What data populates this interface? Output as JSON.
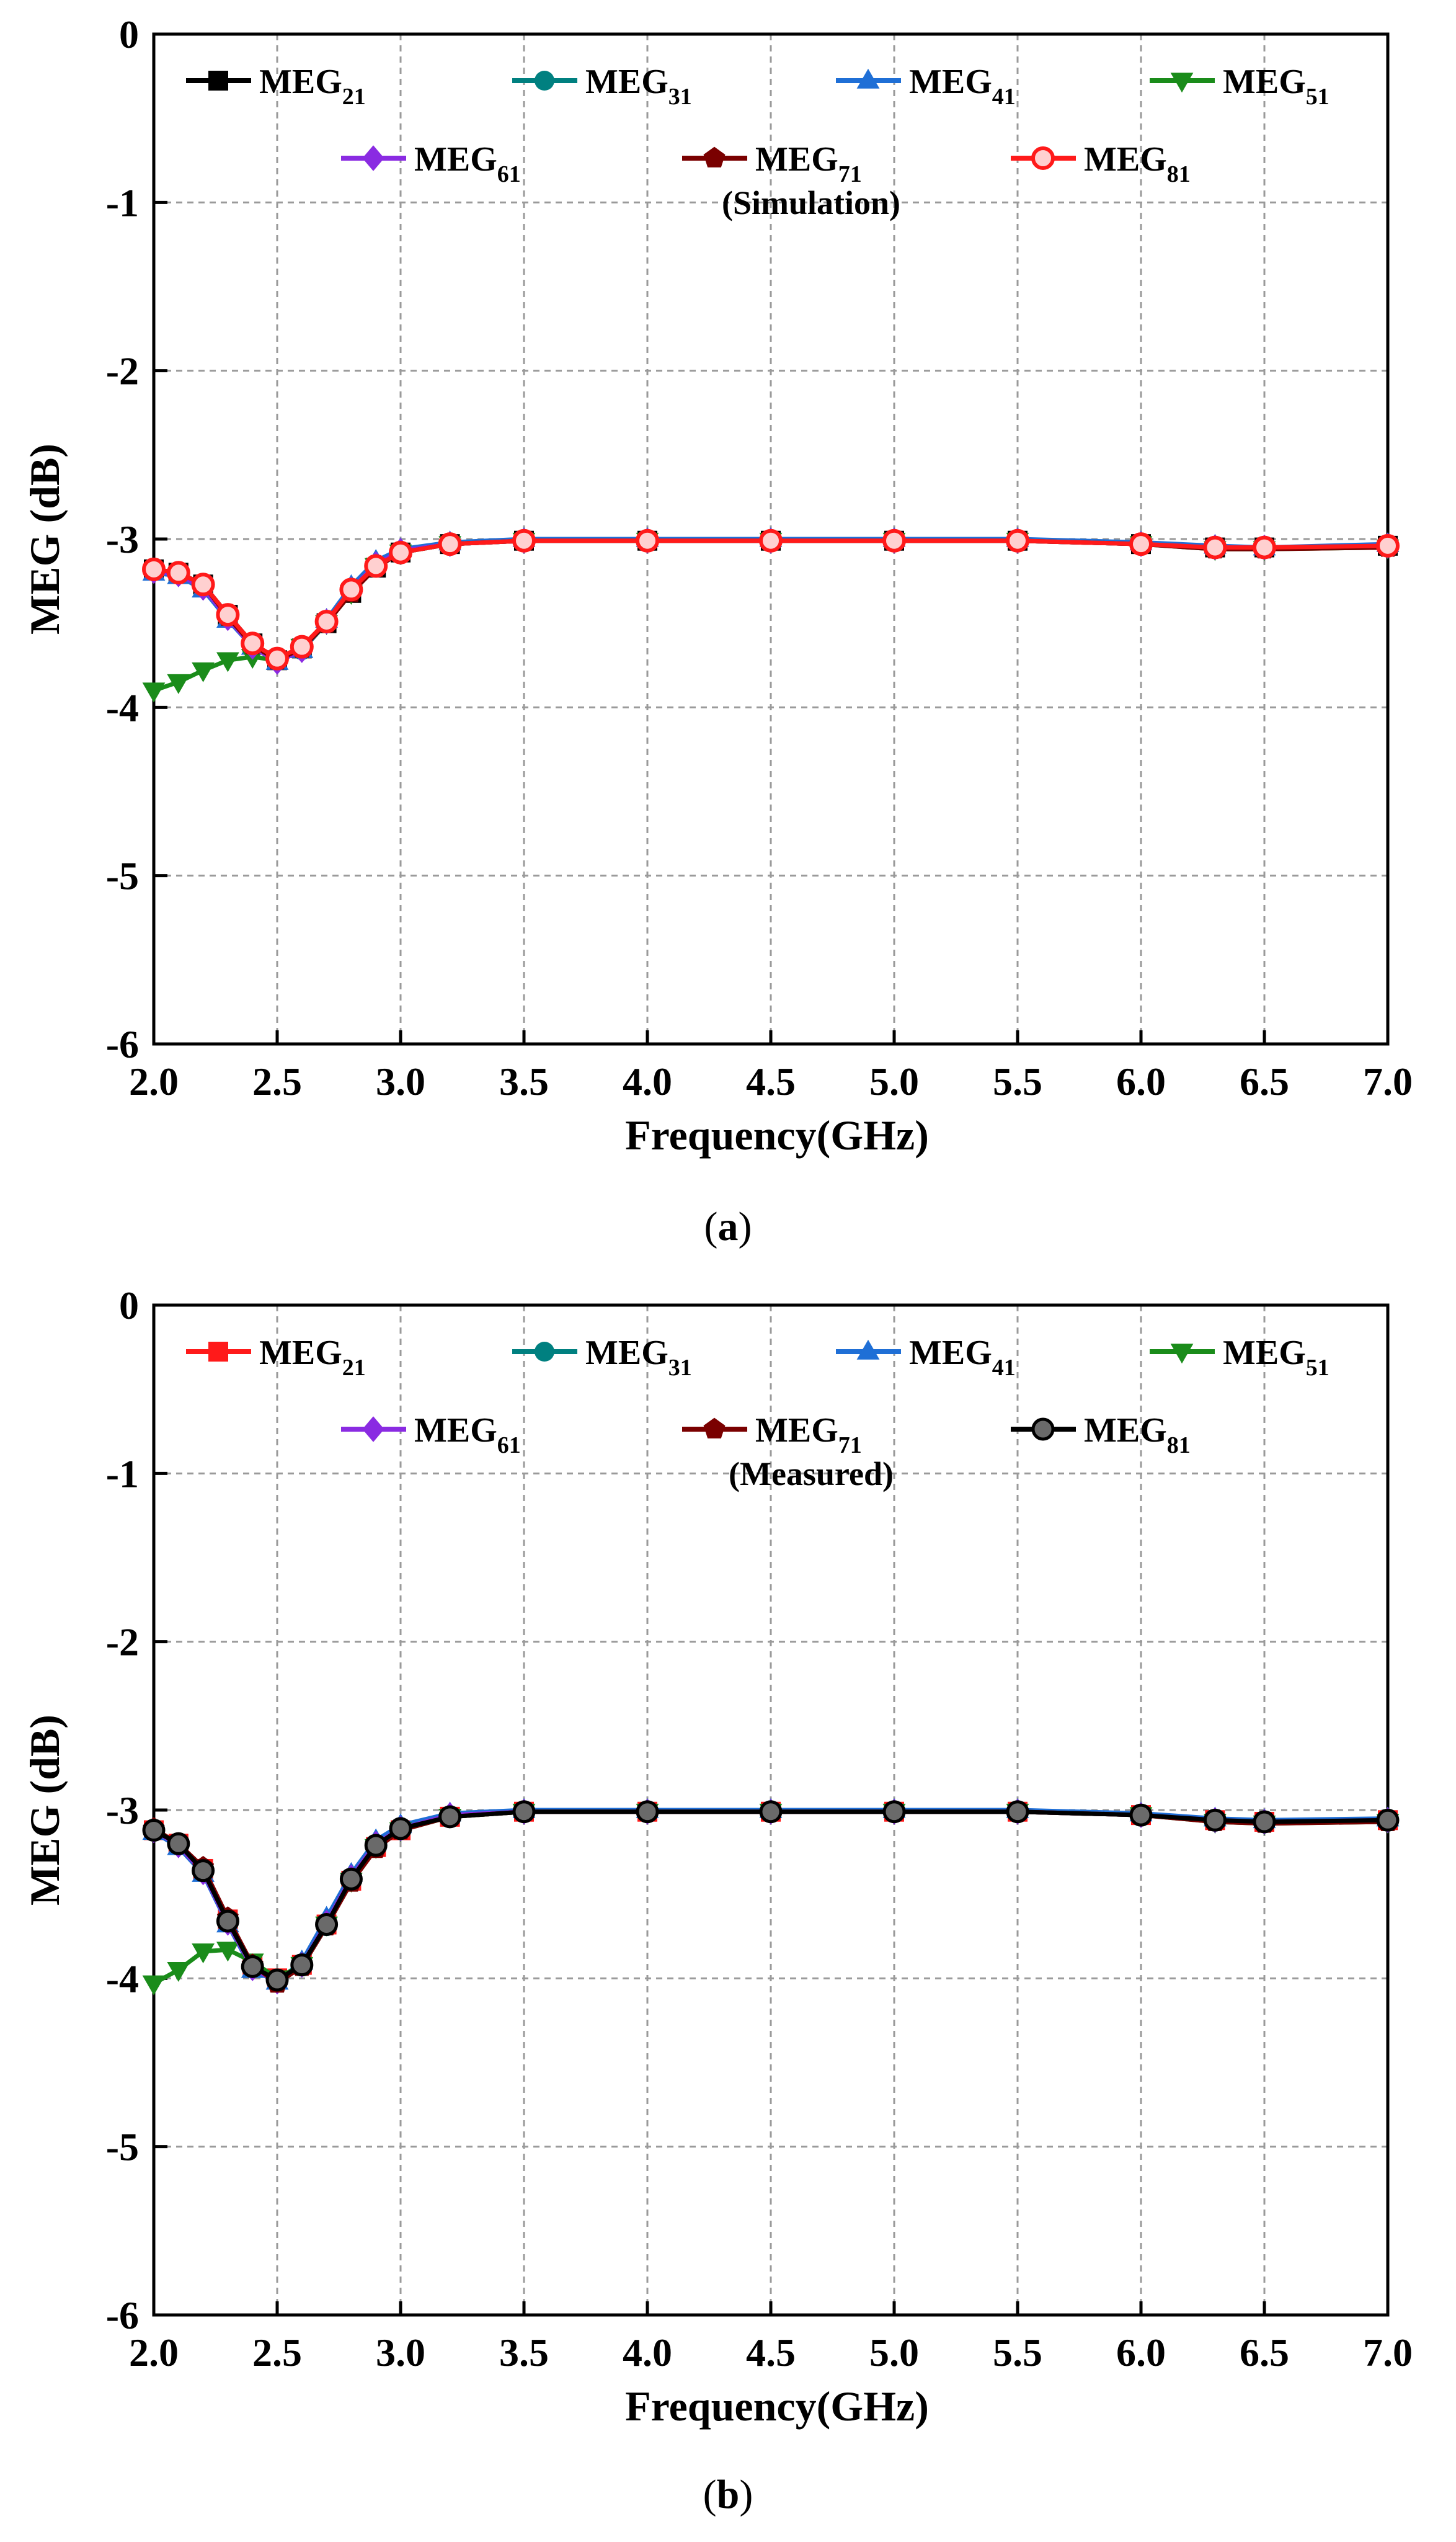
{
  "chart_data": [
    {
      "type": "line",
      "panel": "a",
      "caption_letter": "a",
      "note": "(Simulation)",
      "xlabel": "Frequency(GHz)",
      "ylabel": "MEG (dB)",
      "xlim": [
        2.0,
        7.0
      ],
      "ylim": [
        -6,
        0
      ],
      "xticks": [
        "2.0",
        "2.5",
        "3.0",
        "3.5",
        "4.0",
        "4.5",
        "5.0",
        "5.5",
        "6.0",
        "6.5",
        "7.0"
      ],
      "yticks": [
        "0",
        "-1",
        "-2",
        "-3",
        "-4",
        "-5",
        "-6"
      ],
      "grid": true,
      "legend_placement": "top",
      "series": [
        {
          "name": "MEG",
          "sub": "21",
          "color": "#000000",
          "marker": "square",
          "x": [
            2.0,
            2.1,
            2.2,
            2.3,
            2.4,
            2.5,
            2.6,
            2.7,
            2.8,
            2.9,
            3.0,
            3.2,
            3.5,
            4.0,
            4.5,
            5.0,
            5.5,
            6.0,
            6.3,
            6.5,
            7.0
          ],
          "y": [
            -3.18,
            -3.2,
            -3.27,
            -3.45,
            -3.62,
            -3.72,
            -3.65,
            -3.5,
            -3.32,
            -3.17,
            -3.08,
            -3.03,
            -3.01,
            -3.01,
            -3.01,
            -3.01,
            -3.01,
            -3.03,
            -3.05,
            -3.05,
            -3.04
          ]
        },
        {
          "name": "MEG",
          "sub": "31",
          "color": "#008080",
          "marker": "circle",
          "x": [
            2.0,
            2.1,
            2.2,
            2.3,
            2.4,
            2.5,
            2.6,
            2.7,
            2.8,
            2.9,
            3.0,
            3.2,
            3.5,
            4.0,
            4.5,
            5.0,
            5.5,
            6.0,
            6.3,
            6.5,
            7.0
          ],
          "y": [
            -3.19,
            -3.21,
            -3.28,
            -3.46,
            -3.63,
            -3.72,
            -3.66,
            -3.5,
            -3.31,
            -3.16,
            -3.08,
            -3.03,
            -3.01,
            -3.01,
            -3.01,
            -3.01,
            -3.01,
            -3.03,
            -3.05,
            -3.05,
            -3.04
          ]
        },
        {
          "name": "MEG",
          "sub": "41",
          "color": "#1f6fd6",
          "marker": "triangle-up",
          "x": [
            2.0,
            2.1,
            2.2,
            2.3,
            2.4,
            2.5,
            2.6,
            2.7,
            2.8,
            2.9,
            3.0,
            3.2,
            3.5,
            4.0,
            4.5,
            5.0,
            5.5,
            6.0,
            6.3,
            6.5,
            7.0
          ],
          "y": [
            -3.2,
            -3.22,
            -3.3,
            -3.48,
            -3.64,
            -3.73,
            -3.66,
            -3.48,
            -3.28,
            -3.13,
            -3.06,
            -3.02,
            -3.0,
            -3.0,
            -3.0,
            -3.0,
            -3.0,
            -3.02,
            -3.04,
            -3.05,
            -3.03
          ]
        },
        {
          "name": "MEG",
          "sub": "51",
          "color": "#1a8c1a",
          "marker": "triangle-down",
          "x": [
            2.0,
            2.1,
            2.2,
            2.3,
            2.4,
            2.5,
            2.6,
            2.7,
            2.8,
            2.9,
            3.0,
            3.2,
            3.5,
            4.0,
            4.5,
            5.0,
            5.5,
            6.0,
            6.3,
            6.5,
            7.0
          ],
          "y": [
            -3.9,
            -3.85,
            -3.78,
            -3.72,
            -3.7,
            -3.72,
            -3.64,
            -3.5,
            -3.32,
            -3.16,
            -3.08,
            -3.03,
            -3.01,
            -3.01,
            -3.01,
            -3.01,
            -3.01,
            -3.03,
            -3.06,
            -3.06,
            -3.05
          ]
        },
        {
          "name": "MEG",
          "sub": "61",
          "color": "#8a2be2",
          "marker": "diamond",
          "x": [
            2.0,
            2.1,
            2.2,
            2.3,
            2.4,
            2.5,
            2.6,
            2.7,
            2.8,
            2.9,
            3.0,
            3.2,
            3.5,
            4.0,
            4.5,
            5.0,
            5.5,
            6.0,
            6.3,
            6.5,
            7.0
          ],
          "y": [
            -3.19,
            -3.21,
            -3.29,
            -3.47,
            -3.64,
            -3.73,
            -3.66,
            -3.49,
            -3.3,
            -3.15,
            -3.07,
            -3.03,
            -3.01,
            -3.01,
            -3.01,
            -3.01,
            -3.01,
            -3.03,
            -3.05,
            -3.05,
            -3.04
          ]
        },
        {
          "name": "MEG",
          "sub": "71",
          "color": "#7a0000",
          "marker": "pentagon",
          "x": [
            2.0,
            2.1,
            2.2,
            2.3,
            2.4,
            2.5,
            2.6,
            2.7,
            2.8,
            2.9,
            3.0,
            3.2,
            3.5,
            4.0,
            4.5,
            5.0,
            5.5,
            6.0,
            6.3,
            6.5,
            7.0
          ],
          "y": [
            -3.18,
            -3.2,
            -3.27,
            -3.46,
            -3.63,
            -3.72,
            -3.65,
            -3.5,
            -3.32,
            -3.17,
            -3.08,
            -3.03,
            -3.01,
            -3.01,
            -3.01,
            -3.01,
            -3.01,
            -3.03,
            -3.06,
            -3.06,
            -3.05
          ]
        },
        {
          "name": "MEG",
          "sub": "81",
          "color": "#ff1a1a",
          "marker": "ring",
          "x": [
            2.0,
            2.1,
            2.2,
            2.3,
            2.4,
            2.5,
            2.6,
            2.7,
            2.8,
            2.9,
            3.0,
            3.2,
            3.5,
            4.0,
            4.5,
            5.0,
            5.5,
            6.0,
            6.3,
            6.5,
            7.0
          ],
          "y": [
            -3.18,
            -3.2,
            -3.27,
            -3.45,
            -3.62,
            -3.71,
            -3.64,
            -3.49,
            -3.3,
            -3.16,
            -3.08,
            -3.03,
            -3.01,
            -3.01,
            -3.01,
            -3.01,
            -3.01,
            -3.03,
            -3.05,
            -3.05,
            -3.04
          ]
        }
      ]
    },
    {
      "type": "line",
      "panel": "b",
      "caption_letter": "b",
      "note": "(Measured)",
      "xlabel": "Frequency(GHz)",
      "ylabel": "MEG (dB)",
      "xlim": [
        2.0,
        7.0
      ],
      "ylim": [
        -6,
        0
      ],
      "xticks": [
        "2.0",
        "2.5",
        "3.0",
        "3.5",
        "4.0",
        "4.5",
        "5.0",
        "5.5",
        "6.0",
        "6.5",
        "7.0"
      ],
      "yticks": [
        "0",
        "-1",
        "-2",
        "-3",
        "-4",
        "-5",
        "-6"
      ],
      "grid": true,
      "legend_placement": "top",
      "series": [
        {
          "name": "MEG",
          "sub": "21",
          "color": "#ff1a1a",
          "marker": "square",
          "x": [
            2.0,
            2.1,
            2.2,
            2.3,
            2.4,
            2.5,
            2.6,
            2.7,
            2.8,
            2.9,
            3.0,
            3.2,
            3.5,
            4.0,
            4.5,
            5.0,
            5.5,
            6.0,
            6.3,
            6.5,
            7.0
          ],
          "y": [
            -3.12,
            -3.2,
            -3.35,
            -3.65,
            -3.92,
            -4.0,
            -3.92,
            -3.68,
            -3.42,
            -3.22,
            -3.12,
            -3.04,
            -3.01,
            -3.01,
            -3.01,
            -3.01,
            -3.01,
            -3.03,
            -3.06,
            -3.07,
            -3.06
          ]
        },
        {
          "name": "MEG",
          "sub": "31",
          "color": "#008080",
          "marker": "circle",
          "x": [
            2.0,
            2.1,
            2.2,
            2.3,
            2.4,
            2.5,
            2.6,
            2.7,
            2.8,
            2.9,
            3.0,
            3.2,
            3.5,
            4.0,
            4.5,
            5.0,
            5.5,
            6.0,
            6.3,
            6.5,
            7.0
          ],
          "y": [
            -3.12,
            -3.21,
            -3.36,
            -3.66,
            -3.93,
            -4.01,
            -3.93,
            -3.69,
            -3.42,
            -3.22,
            -3.12,
            -3.04,
            -3.01,
            -3.01,
            -3.01,
            -3.01,
            -3.01,
            -3.03,
            -3.06,
            -3.07,
            -3.06
          ]
        },
        {
          "name": "MEG",
          "sub": "41",
          "color": "#1f6fd6",
          "marker": "triangle-up",
          "x": [
            2.0,
            2.1,
            2.2,
            2.3,
            2.4,
            2.5,
            2.6,
            2.7,
            2.8,
            2.9,
            3.0,
            3.2,
            3.5,
            4.0,
            4.5,
            5.0,
            5.5,
            6.0,
            6.3,
            6.5,
            7.0
          ],
          "y": [
            -3.13,
            -3.22,
            -3.38,
            -3.68,
            -3.95,
            -4.02,
            -3.9,
            -3.64,
            -3.38,
            -3.18,
            -3.09,
            -3.02,
            -3.0,
            -3.0,
            -3.0,
            -3.0,
            -3.0,
            -3.02,
            -3.05,
            -3.06,
            -3.05
          ]
        },
        {
          "name": "MEG",
          "sub": "51",
          "color": "#1a8c1a",
          "marker": "triangle-down",
          "x": [
            2.0,
            2.1,
            2.2,
            2.3,
            2.4,
            2.5,
            2.6,
            2.7,
            2.8,
            2.9,
            3.0,
            3.2,
            3.5,
            4.0,
            4.5,
            5.0,
            5.5,
            6.0,
            6.3,
            6.5,
            7.0
          ],
          "y": [
            -4.03,
            -3.95,
            -3.84,
            -3.83,
            -3.9,
            -4.0,
            -3.92,
            -3.68,
            -3.42,
            -3.22,
            -3.12,
            -3.04,
            -3.01,
            -3.01,
            -3.01,
            -3.01,
            -3.01,
            -3.03,
            -3.07,
            -3.08,
            -3.07
          ]
        },
        {
          "name": "MEG",
          "sub": "61",
          "color": "#8a2be2",
          "marker": "diamond",
          "x": [
            2.0,
            2.1,
            2.2,
            2.3,
            2.4,
            2.5,
            2.6,
            2.7,
            2.8,
            2.9,
            3.0,
            3.2,
            3.5,
            4.0,
            4.5,
            5.0,
            5.5,
            6.0,
            6.3,
            6.5,
            7.0
          ],
          "y": [
            -3.12,
            -3.21,
            -3.37,
            -3.67,
            -3.94,
            -4.02,
            -3.92,
            -3.67,
            -3.4,
            -3.2,
            -3.11,
            -3.03,
            -3.01,
            -3.01,
            -3.01,
            -3.01,
            -3.01,
            -3.03,
            -3.06,
            -3.07,
            -3.06
          ]
        },
        {
          "name": "MEG",
          "sub": "71",
          "color": "#7a0000",
          "marker": "pentagon",
          "x": [
            2.0,
            2.1,
            2.2,
            2.3,
            2.4,
            2.5,
            2.6,
            2.7,
            2.8,
            2.9,
            3.0,
            3.2,
            3.5,
            4.0,
            4.5,
            5.0,
            5.5,
            6.0,
            6.3,
            6.5,
            7.0
          ],
          "y": [
            -3.11,
            -3.2,
            -3.34,
            -3.64,
            -3.92,
            -4.03,
            -3.93,
            -3.69,
            -3.43,
            -3.23,
            -3.12,
            -3.04,
            -3.01,
            -3.01,
            -3.01,
            -3.01,
            -3.01,
            -3.03,
            -3.07,
            -3.08,
            -3.07
          ]
        },
        {
          "name": "MEG",
          "sub": "81",
          "color": "#000000",
          "marker": "ball",
          "x": [
            2.0,
            2.1,
            2.2,
            2.3,
            2.4,
            2.5,
            2.6,
            2.7,
            2.8,
            2.9,
            3.0,
            3.2,
            3.5,
            4.0,
            4.5,
            5.0,
            5.5,
            6.0,
            6.3,
            6.5,
            7.0
          ],
          "y": [
            -3.12,
            -3.2,
            -3.36,
            -3.66,
            -3.93,
            -4.01,
            -3.92,
            -3.68,
            -3.41,
            -3.21,
            -3.11,
            -3.04,
            -3.01,
            -3.01,
            -3.01,
            -3.01,
            -3.01,
            -3.03,
            -3.06,
            -3.07,
            -3.06
          ]
        }
      ]
    }
  ]
}
